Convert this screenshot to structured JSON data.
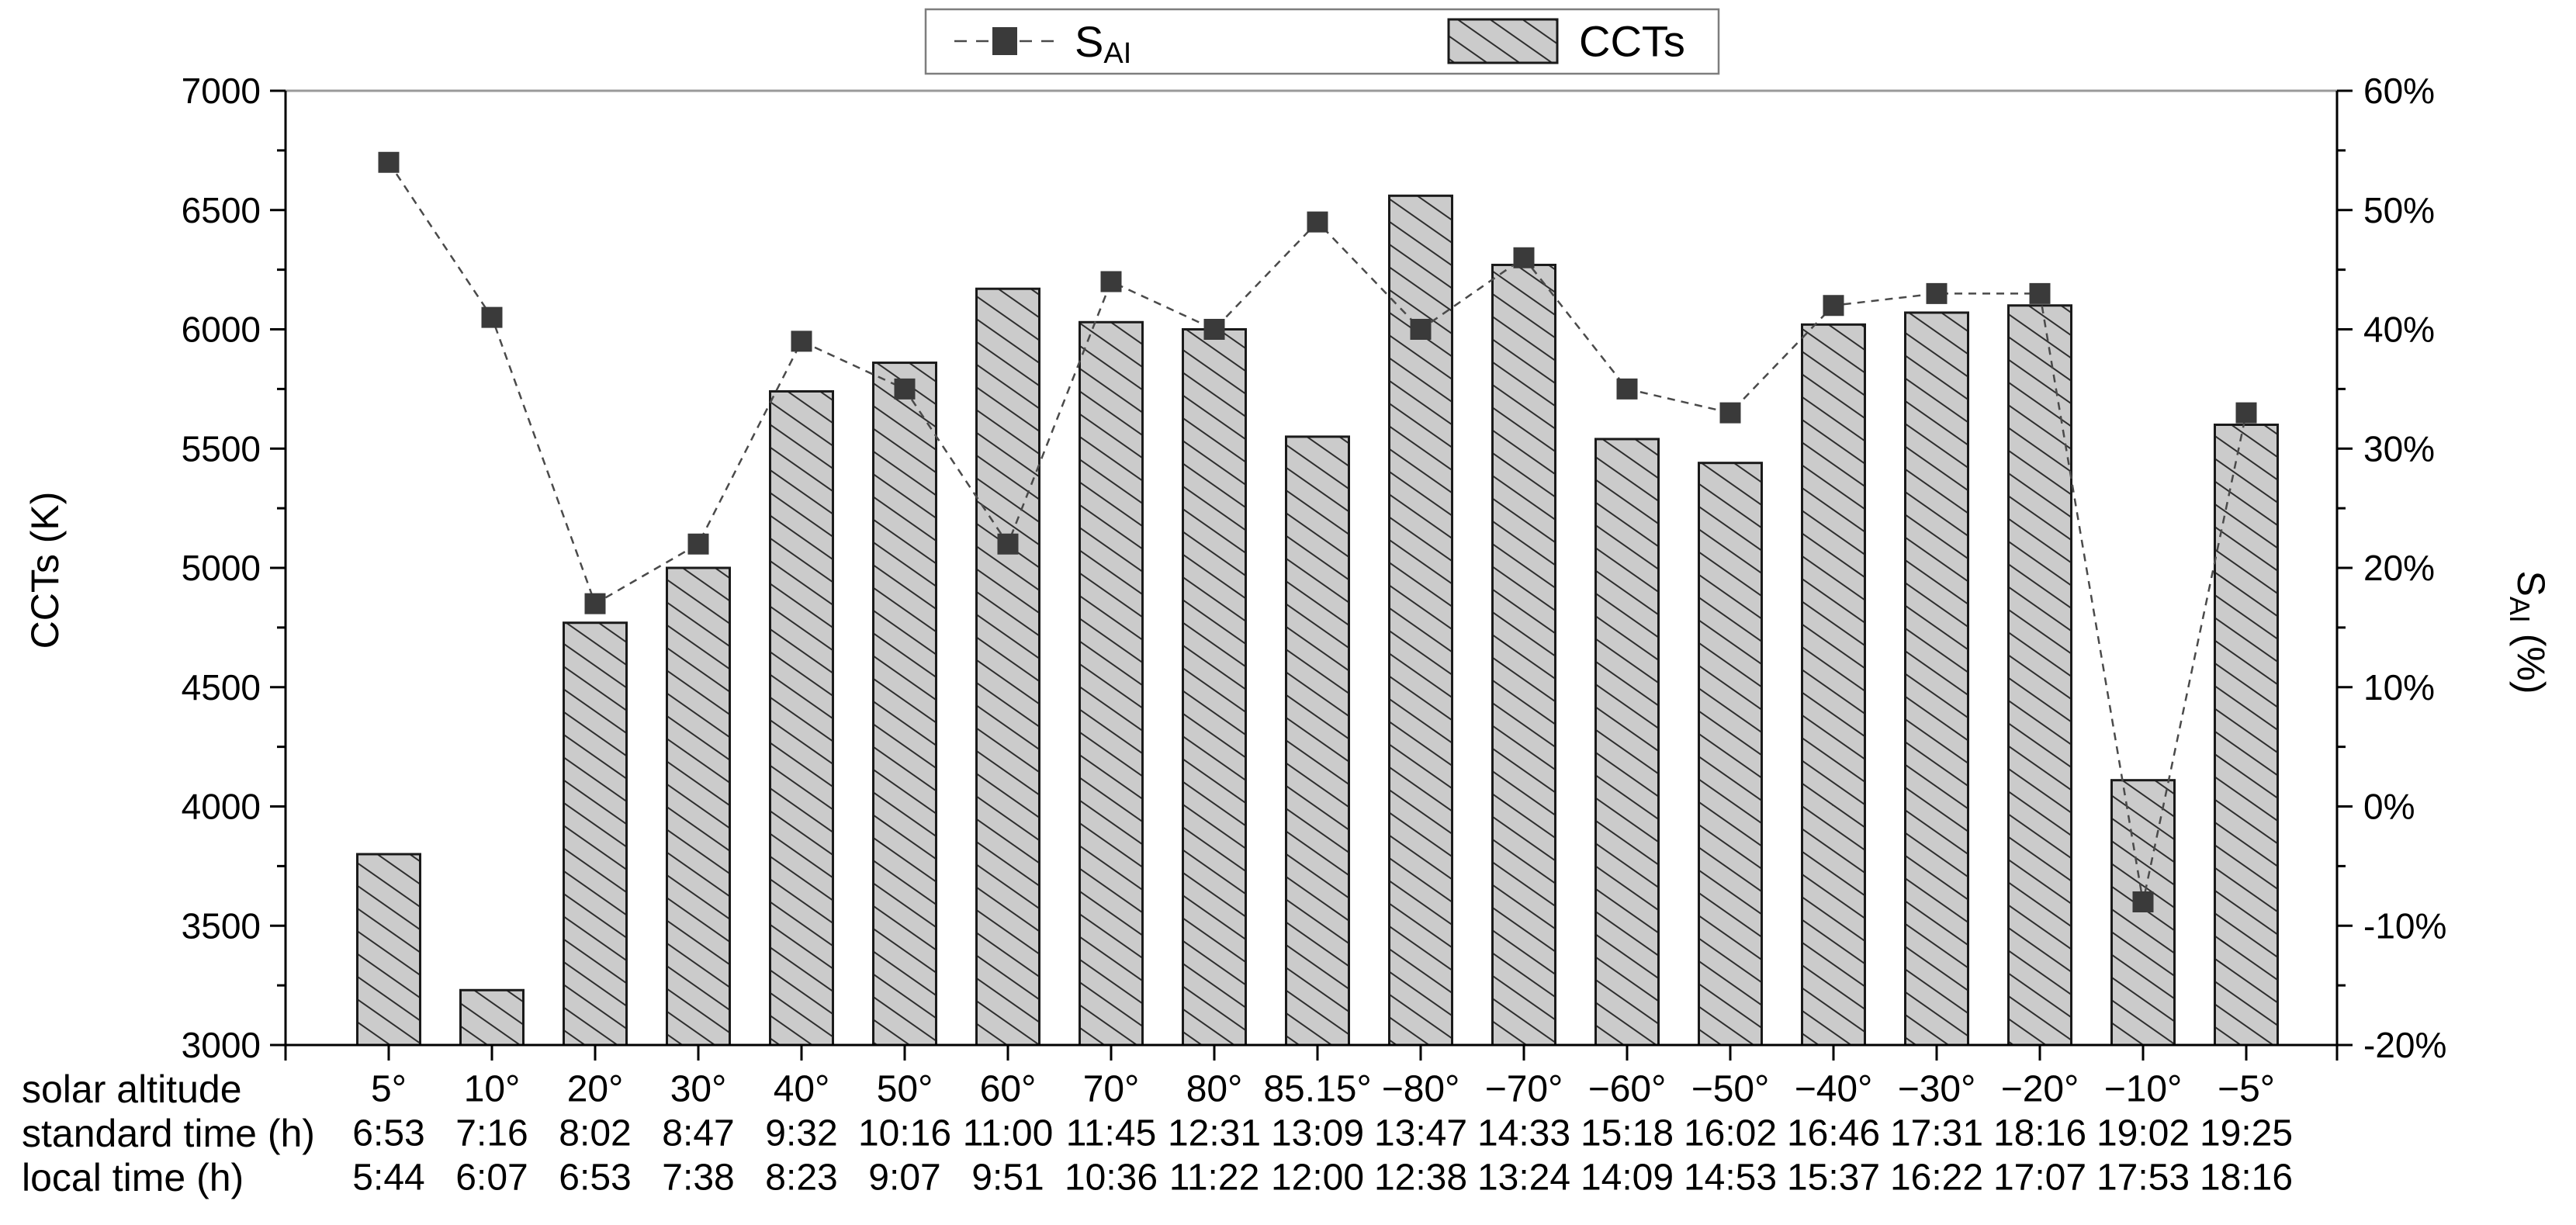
{
  "chart_data": {
    "type": "bar",
    "title": "",
    "legend": {
      "sai": {
        "main": "S",
        "sub": "AI"
      },
      "ccts": {
        "label": "CCTs"
      }
    },
    "categories": [
      "5°",
      "10°",
      "20°",
      "30°",
      "40°",
      "50°",
      "60°",
      "70°",
      "80°",
      "85.15°",
      "−80°",
      "−70°",
      "−60°",
      "−50°",
      "−40°",
      "−30°",
      "−20°",
      "−10°",
      "−5°"
    ],
    "series": [
      {
        "name": "CCTs",
        "type": "bar",
        "axis": "left",
        "values": [
          3800,
          3230,
          4770,
          5000,
          5740,
          5860,
          6170,
          6030,
          6000,
          5550,
          6560,
          6270,
          5540,
          5440,
          6020,
          6070,
          6100,
          4110,
          5600
        ]
      },
      {
        "name": "SAI",
        "type": "line",
        "axis": "right",
        "values": [
          54,
          41,
          17,
          22,
          39,
          35,
          22,
          44,
          40,
          49,
          40,
          46,
          35,
          33,
          42,
          43,
          43,
          -8,
          33
        ]
      }
    ],
    "x_rows": [
      {
        "label": "solar altitude",
        "values": [
          "5°",
          "10°",
          "20°",
          "30°",
          "40°",
          "50°",
          "60°",
          "70°",
          "80°",
          "85.15°",
          "−80°",
          "−70°",
          "−60°",
          "−50°",
          "−40°",
          "−30°",
          "−20°",
          "−10°",
          "−5°"
        ]
      },
      {
        "label": "standard time (h)",
        "values": [
          "6:53",
          "7:16",
          "8:02",
          "8:47",
          "9:32",
          "10:16",
          "11:00",
          "11:45",
          "12:31",
          "13:09",
          "13:47",
          "14:33",
          "15:18",
          "16:02",
          "16:46",
          "17:31",
          "18:16",
          "19:02",
          "19:25"
        ]
      },
      {
        "label": "local time (h)",
        "values": [
          "5:44",
          "6:07",
          "6:53",
          "7:38",
          "8:23",
          "9:07",
          "9:51",
          "10:36",
          "11:22",
          "12:00",
          "12:38",
          "13:24",
          "14:09",
          "14:53",
          "15:37",
          "16:22",
          "17:07",
          "17:53",
          "18:16"
        ]
      }
    ],
    "left_axis": {
      "title": "CCTs (K)",
      "min": 3000,
      "max": 7000,
      "tick_labels": [
        "7000",
        "6500",
        "6000",
        "5500",
        "5000",
        "4500",
        "4000",
        "3500",
        "3000"
      ]
    },
    "right_axis": {
      "title_main": "S",
      "title_sub": "AI",
      "title_rest": " (%)",
      "min": -20,
      "max": 60,
      "tick_labels": [
        "60%",
        "50%",
        "40%",
        "30%",
        "20%",
        "10%",
        "0%",
        "-10%",
        "-20%"
      ]
    },
    "layout_hints": {
      "grid": "off",
      "legend_position": "top-center",
      "bar_hatch": "diagonal"
    },
    "colors": {
      "bar_fill": "#cbcbcb",
      "bar_edge": "#1a1a1a",
      "hatch_line": "#2e2e2e",
      "line": "#4a4a4a",
      "marker": "#3a3a3a",
      "axis": "#000000",
      "frame_top": "#9a9a9a",
      "legend_border": "#7e7e7e",
      "background": "#ffffff"
    }
  }
}
